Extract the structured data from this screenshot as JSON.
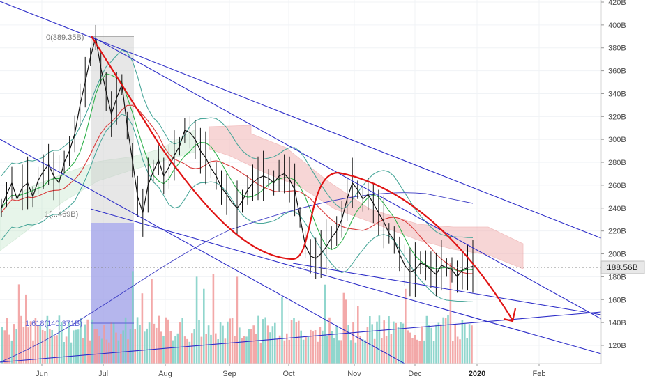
{
  "chart_data": {
    "type": "line",
    "title": "",
    "xlabel": "",
    "ylabel": "",
    "ylim": [
      105,
      420
    ],
    "y_ticks": [
      "120B",
      "140B",
      "160B",
      "180B",
      "200B",
      "220B",
      "240B",
      "260B",
      "280B",
      "300B",
      "320B",
      "340B",
      "360B",
      "380B",
      "400B",
      "420B"
    ],
    "x_ticks": [
      {
        "label": "Jun",
        "year": false
      },
      {
        "label": "Jul",
        "year": false
      },
      {
        "label": "Aug",
        "year": false
      },
      {
        "label": "Sep",
        "year": false
      },
      {
        "label": "Oct",
        "year": false
      },
      {
        "label": "Nov",
        "year": false
      },
      {
        "label": "Dec",
        "year": false
      },
      {
        "label": "2020",
        "year": true
      },
      {
        "label": "Feb",
        "year": false
      }
    ],
    "last_price": {
      "label": "188.56B",
      "value": 188.56
    },
    "annotations": {
      "fib_top": "0(389.35B)",
      "fib_mid": "1(...469B)",
      "fib_ext": "1.618(140.371B)"
    },
    "series": [
      {
        "values": [
          240,
          252,
          262,
          248,
          258,
          262,
          250,
          264,
          272,
          278,
          268,
          262,
          280,
          290,
          305,
          330,
          350,
          372,
          389,
          362,
          342,
          322,
          336,
          348,
          312,
          282,
          250,
          236,
          260,
          272,
          282,
          268,
          276,
          286,
          294,
          308,
          306,
          300,
          290,
          284,
          275,
          268,
          258,
          252,
          245,
          240,
          246,
          256,
          262,
          266,
          268,
          266,
          262,
          268,
          270,
          265,
          256,
          232,
          208,
          198,
          196,
          200,
          206,
          214,
          220,
          230,
          248,
          262,
          256,
          248,
          252,
          244,
          236,
          228,
          218,
          212,
          200,
          190,
          184,
          186,
          192,
          190,
          186,
          182,
          190,
          188,
          186,
          180,
          186,
          188,
          189
        ]
      }
    ],
    "colors": {
      "price": "#111111",
      "downtrend": "#e01414",
      "channel": "#2d2dc8",
      "cloud_bear": "#f2b5b5",
      "cloud_bull": "#bde3c4",
      "volume_up": "#7ccfc4",
      "volume_down": "#f19a9a"
    }
  }
}
